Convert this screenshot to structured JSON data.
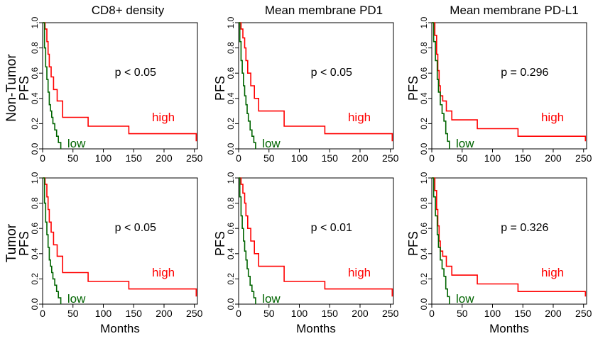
{
  "figure": {
    "col_titles": [
      "CD8+ density",
      "Mean membrane PD1",
      "Mean membrane PD-L1"
    ],
    "row_labels": [
      "Non-Tumor",
      "Tumor"
    ],
    "colors": {
      "high": "#ff0000",
      "low": "#006400",
      "axis": "#000000"
    }
  },
  "chart_data": [
    {
      "type": "line",
      "row": "Non-Tumor",
      "column": "CD8+ density",
      "ylabel": "PFS",
      "xlabel": "",
      "xlim": [
        0,
        255
      ],
      "ylim": [
        0,
        1
      ],
      "xticks": [
        "0",
        "50",
        "100",
        "150",
        "200",
        "250"
      ],
      "yticks": [
        "0.0",
        "0.2",
        "0.4",
        "0.6",
        "0.8",
        "1.0"
      ],
      "pvalue": "p < 0.05",
      "step": true,
      "series": [
        {
          "name": "high",
          "label": "high",
          "x": [
            0,
            4,
            7,
            9,
            11,
            14,
            18,
            24,
            33,
            75,
            142,
            253
          ],
          "y": [
            1,
            0.95,
            0.85,
            0.75,
            0.65,
            0.57,
            0.47,
            0.38,
            0.25,
            0.18,
            0.12,
            0.06
          ]
        },
        {
          "name": "low",
          "label": "low",
          "x": [
            0,
            3,
            5,
            7,
            9,
            11,
            13,
            15,
            17,
            20,
            23,
            26,
            30
          ],
          "y": [
            1,
            0.8,
            0.65,
            0.55,
            0.45,
            0.35,
            0.3,
            0.25,
            0.2,
            0.15,
            0.1,
            0.05,
            0
          ]
        }
      ]
    },
    {
      "type": "line",
      "row": "Non-Tumor",
      "column": "Mean membrane PD1",
      "ylabel": "PFS",
      "xlabel": "",
      "xlim": [
        0,
        255
      ],
      "ylim": [
        0,
        1
      ],
      "xticks": [
        "0",
        "50",
        "100",
        "150",
        "200",
        "250"
      ],
      "yticks": [
        "0.0",
        "0.2",
        "0.4",
        "0.6",
        "0.8",
        "1.0"
      ],
      "pvalue": "p < 0.05",
      "step": true,
      "series": [
        {
          "name": "high",
          "label": "high",
          "x": [
            0,
            4,
            7,
            10,
            12,
            15,
            20,
            26,
            33,
            75,
            142,
            253
          ],
          "y": [
            1,
            0.95,
            0.88,
            0.8,
            0.7,
            0.6,
            0.5,
            0.4,
            0.3,
            0.18,
            0.12,
            0.06
          ]
        },
        {
          "name": "low",
          "label": "low",
          "x": [
            0,
            2,
            4,
            6,
            8,
            10,
            12,
            14,
            16,
            19,
            22,
            25,
            28
          ],
          "y": [
            1,
            0.85,
            0.7,
            0.6,
            0.5,
            0.42,
            0.35,
            0.28,
            0.22,
            0.15,
            0.1,
            0.05,
            0
          ]
        }
      ]
    },
    {
      "type": "line",
      "row": "Non-Tumor",
      "column": "Mean membrane PD-L1",
      "ylabel": "PFS",
      "xlabel": "",
      "xlim": [
        0,
        255
      ],
      "ylim": [
        0,
        1
      ],
      "xticks": [
        "0",
        "50",
        "100",
        "150",
        "200",
        "250"
      ],
      "yticks": [
        "0.0",
        "0.2",
        "0.4",
        "0.6",
        "0.8",
        "1.0"
      ],
      "pvalue": "p = 0.296",
      "step": true,
      "series": [
        {
          "name": "high",
          "label": "high",
          "x": [
            0,
            5,
            8,
            10,
            12,
            14,
            18,
            24,
            33,
            75,
            142,
            253
          ],
          "y": [
            1,
            0.9,
            0.75,
            0.62,
            0.5,
            0.42,
            0.38,
            0.3,
            0.23,
            0.16,
            0.1,
            0.06
          ]
        },
        {
          "name": "low",
          "label": "low",
          "x": [
            0,
            3,
            6,
            9,
            11,
            14,
            17,
            20,
            23,
            26,
            29
          ],
          "y": [
            1,
            0.85,
            0.7,
            0.55,
            0.45,
            0.35,
            0.28,
            0.22,
            0.12,
            0.06,
            0
          ]
        }
      ]
    },
    {
      "type": "line",
      "row": "Tumor",
      "column": "CD8+ density",
      "ylabel": "PFS",
      "xlabel": "Months",
      "xlim": [
        0,
        255
      ],
      "ylim": [
        0,
        1
      ],
      "xticks": [
        "0",
        "50",
        "100",
        "150",
        "200",
        "250"
      ],
      "yticks": [
        "0.0",
        "0.2",
        "0.4",
        "0.6",
        "0.8",
        "1.0"
      ],
      "pvalue": "p < 0.05",
      "step": true,
      "series": [
        {
          "name": "high",
          "label": "high",
          "x": [
            0,
            4,
            7,
            9,
            11,
            14,
            18,
            24,
            33,
            75,
            142,
            253
          ],
          "y": [
            1,
            0.95,
            0.85,
            0.75,
            0.65,
            0.57,
            0.47,
            0.38,
            0.25,
            0.18,
            0.12,
            0.06
          ]
        },
        {
          "name": "low",
          "label": "low",
          "x": [
            0,
            3,
            5,
            7,
            9,
            11,
            13,
            15,
            17,
            20,
            23,
            26,
            30
          ],
          "y": [
            1,
            0.8,
            0.65,
            0.55,
            0.45,
            0.35,
            0.3,
            0.25,
            0.2,
            0.15,
            0.1,
            0.05,
            0
          ]
        }
      ]
    },
    {
      "type": "line",
      "row": "Tumor",
      "column": "Mean membrane PD1",
      "ylabel": "PFS",
      "xlabel": "Months",
      "xlim": [
        0,
        255
      ],
      "ylim": [
        0,
        1
      ],
      "xticks": [
        "0",
        "50",
        "100",
        "150",
        "200",
        "250"
      ],
      "yticks": [
        "0.0",
        "0.2",
        "0.4",
        "0.6",
        "0.8",
        "1.0"
      ],
      "pvalue": "p < 0.01",
      "step": true,
      "series": [
        {
          "name": "high",
          "label": "high",
          "x": [
            0,
            4,
            7,
            10,
            12,
            15,
            20,
            26,
            33,
            75,
            142,
            253
          ],
          "y": [
            1,
            0.95,
            0.88,
            0.8,
            0.7,
            0.6,
            0.5,
            0.4,
            0.3,
            0.18,
            0.12,
            0.06
          ]
        },
        {
          "name": "low",
          "label": "low",
          "x": [
            0,
            2,
            4,
            6,
            8,
            10,
            12,
            14,
            16,
            19,
            22,
            25,
            28
          ],
          "y": [
            1,
            0.85,
            0.7,
            0.6,
            0.5,
            0.42,
            0.35,
            0.28,
            0.22,
            0.15,
            0.1,
            0.05,
            0
          ]
        }
      ]
    },
    {
      "type": "line",
      "row": "Tumor",
      "column": "Mean membrane PD-L1",
      "ylabel": "PFS",
      "xlabel": "Months",
      "xlim": [
        0,
        255
      ],
      "ylim": [
        0,
        1
      ],
      "xticks": [
        "0",
        "50",
        "100",
        "150",
        "200",
        "250"
      ],
      "yticks": [
        "0.0",
        "0.2",
        "0.4",
        "0.6",
        "0.8",
        "1.0"
      ],
      "pvalue": "p = 0.326",
      "step": true,
      "series": [
        {
          "name": "high",
          "label": "high",
          "x": [
            0,
            5,
            8,
            10,
            12,
            14,
            18,
            24,
            33,
            75,
            142,
            253
          ],
          "y": [
            1,
            0.9,
            0.75,
            0.62,
            0.5,
            0.42,
            0.38,
            0.3,
            0.23,
            0.16,
            0.1,
            0.06
          ]
        },
        {
          "name": "low",
          "label": "low",
          "x": [
            0,
            3,
            6,
            9,
            11,
            14,
            17,
            20,
            23,
            26,
            29
          ],
          "y": [
            1,
            0.85,
            0.7,
            0.55,
            0.45,
            0.35,
            0.28,
            0.22,
            0.12,
            0.06,
            0
          ]
        }
      ]
    }
  ]
}
